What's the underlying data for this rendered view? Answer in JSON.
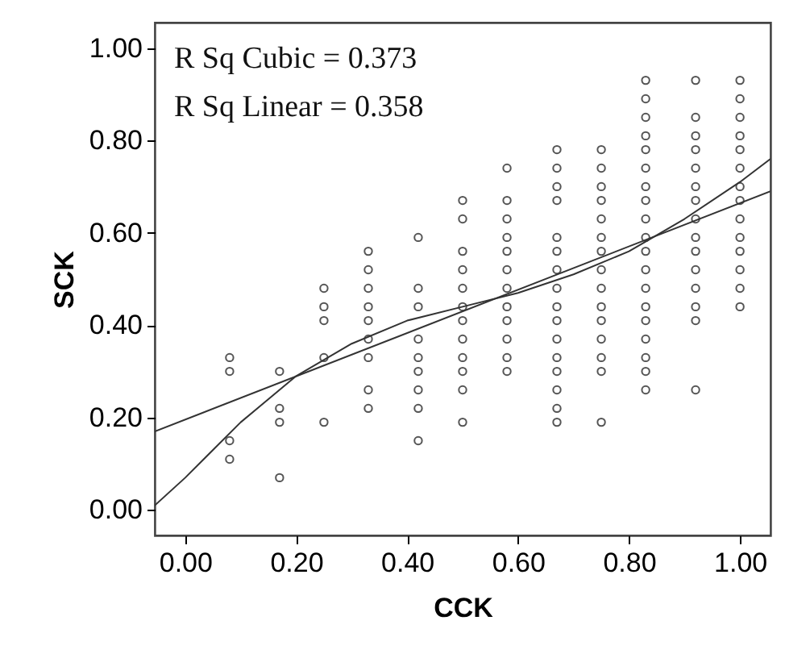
{
  "chart_data": {
    "type": "scatter",
    "xlabel": "CCK",
    "ylabel": "SCK",
    "annotations": [
      "R Sq Cubic  = 0.373",
      "R Sq Linear = 0.358"
    ],
    "xlim": [
      -0.055,
      1.055
    ],
    "ylim": [
      -0.055,
      1.055
    ],
    "xticks": [
      {
        "value": 0,
        "label": "0.00"
      },
      {
        "value": 0.2,
        "label": "0.20"
      },
      {
        "value": 0.4,
        "label": "0.40"
      },
      {
        "value": 0.6,
        "label": "0.60"
      },
      {
        "value": 0.8,
        "label": "0.80"
      },
      {
        "value": 1,
        "label": "1.00"
      }
    ],
    "yticks": [
      {
        "value": 0,
        "label": "0.00"
      },
      {
        "value": 0.2,
        "label": "0.20"
      },
      {
        "value": 0.4,
        "label": "0.40"
      },
      {
        "value": 0.6,
        "label": "0.60"
      },
      {
        "value": 0.8,
        "label": "0.80"
      },
      {
        "value": 1,
        "label": "1.00"
      }
    ],
    "series": [
      {
        "color": "#555555",
        "marker": "circle",
        "x": [
          0.08,
          0.08,
          0.08,
          0.08,
          0.17,
          0.17,
          0.17,
          0.17,
          0.25,
          0.25,
          0.25,
          0.25,
          0.25,
          0.33,
          0.33,
          0.33,
          0.33,
          0.33,
          0.33,
          0.33,
          0.33,
          0.33,
          0.42,
          0.42,
          0.42,
          0.42,
          0.42,
          0.42,
          0.42,
          0.42,
          0.42,
          0.5,
          0.5,
          0.5,
          0.5,
          0.5,
          0.5,
          0.5,
          0.5,
          0.5,
          0.5,
          0.5,
          0.5,
          0.58,
          0.58,
          0.58,
          0.58,
          0.58,
          0.58,
          0.58,
          0.58,
          0.58,
          0.58,
          0.58,
          0.58,
          0.67,
          0.67,
          0.67,
          0.67,
          0.67,
          0.67,
          0.67,
          0.67,
          0.67,
          0.67,
          0.67,
          0.67,
          0.67,
          0.67,
          0.67,
          0.67,
          0.75,
          0.75,
          0.75,
          0.75,
          0.75,
          0.75,
          0.75,
          0.75,
          0.75,
          0.75,
          0.75,
          0.75,
          0.75,
          0.75,
          0.75,
          0.83,
          0.83,
          0.83,
          0.83,
          0.83,
          0.83,
          0.83,
          0.83,
          0.83,
          0.83,
          0.83,
          0.83,
          0.83,
          0.83,
          0.83,
          0.83,
          0.83,
          0.83,
          0.83,
          0.92,
          0.92,
          0.92,
          0.92,
          0.92,
          0.92,
          0.92,
          0.92,
          0.92,
          0.92,
          0.92,
          0.92,
          0.92,
          0.92,
          0.92,
          1.0,
          1.0,
          1.0,
          1.0,
          1.0,
          1.0,
          1.0,
          1.0,
          1.0,
          1.0,
          1.0,
          1.0,
          1.0,
          1.0
        ],
        "values": [
          0.33,
          0.3,
          0.15,
          0.11,
          0.3,
          0.22,
          0.19,
          0.07,
          0.48,
          0.44,
          0.41,
          0.33,
          0.19,
          0.56,
          0.52,
          0.48,
          0.44,
          0.41,
          0.37,
          0.33,
          0.26,
          0.22,
          0.59,
          0.48,
          0.44,
          0.37,
          0.33,
          0.3,
          0.26,
          0.22,
          0.15,
          0.67,
          0.63,
          0.56,
          0.52,
          0.48,
          0.44,
          0.41,
          0.37,
          0.33,
          0.3,
          0.26,
          0.19,
          0.74,
          0.67,
          0.63,
          0.59,
          0.56,
          0.52,
          0.48,
          0.44,
          0.41,
          0.37,
          0.33,
          0.3,
          0.78,
          0.74,
          0.7,
          0.67,
          0.59,
          0.56,
          0.52,
          0.48,
          0.44,
          0.41,
          0.37,
          0.33,
          0.3,
          0.26,
          0.22,
          0.19,
          0.78,
          0.74,
          0.7,
          0.67,
          0.63,
          0.59,
          0.56,
          0.52,
          0.48,
          0.44,
          0.41,
          0.37,
          0.33,
          0.3,
          0.19,
          0.93,
          0.89,
          0.85,
          0.81,
          0.78,
          0.74,
          0.7,
          0.67,
          0.63,
          0.59,
          0.56,
          0.52,
          0.48,
          0.44,
          0.41,
          0.37,
          0.33,
          0.3,
          0.26,
          0.93,
          0.85,
          0.81,
          0.78,
          0.74,
          0.7,
          0.67,
          0.63,
          0.59,
          0.56,
          0.52,
          0.48,
          0.44,
          0.41,
          0.26,
          0.93,
          0.89,
          0.85,
          0.81,
          0.78,
          0.74,
          0.7,
          0.67,
          0.63,
          0.59,
          0.56,
          0.52,
          0.48,
          0.44
        ]
      },
      {
        "type": "line",
        "color": "#333333",
        "x": [
          -0.055,
          0,
          0.1,
          0.2,
          0.3,
          0.4,
          0.5,
          0.6,
          0.7,
          0.8,
          0.9,
          1.0,
          1.055
        ],
        "values": [
          0.01,
          0.07,
          0.19,
          0.29,
          0.36,
          0.41,
          0.44,
          0.47,
          0.51,
          0.56,
          0.63,
          0.71,
          0.76
        ]
      },
      {
        "type": "line",
        "color": "#333333",
        "x": [
          -0.055,
          1.055
        ],
        "values": [
          0.17,
          0.69
        ]
      }
    ]
  }
}
